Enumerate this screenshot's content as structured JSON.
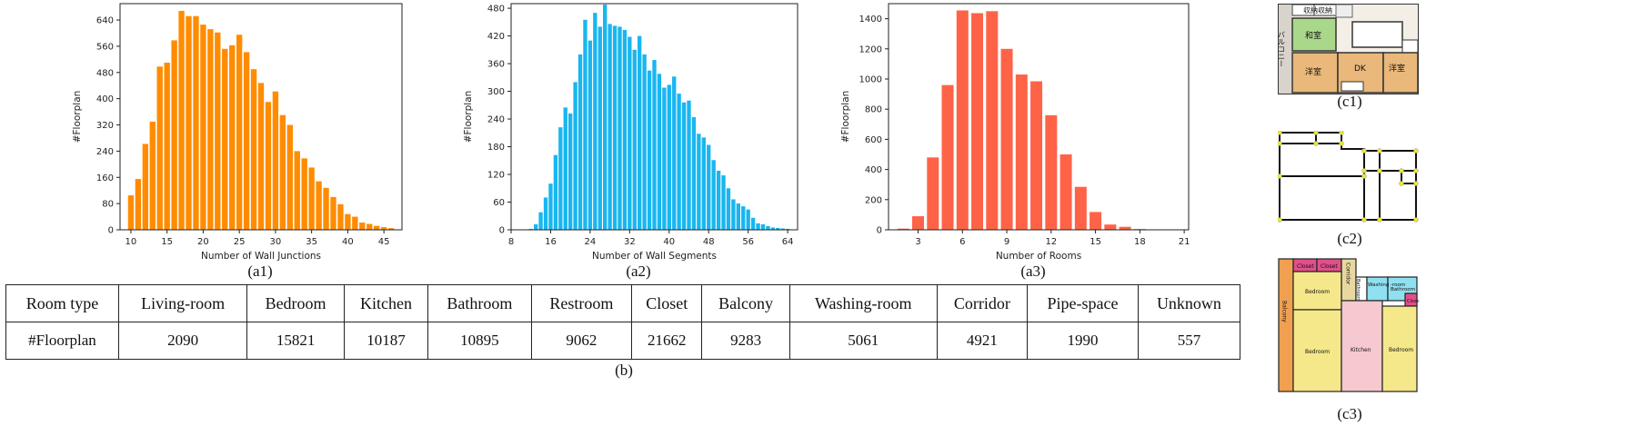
{
  "chart_data": [
    {
      "type": "bar",
      "xlabel": "Number of Wall Junctions",
      "ylabel": "#Floorplan",
      "color": "#ff8c00",
      "x": [
        10,
        11,
        12,
        13,
        14,
        15,
        16,
        17,
        18,
        19,
        20,
        21,
        22,
        23,
        24,
        25,
        26,
        27,
        28,
        29,
        30,
        31,
        32,
        33,
        34,
        35,
        36,
        37,
        38,
        39,
        40,
        41,
        42,
        43,
        44,
        45,
        46
      ],
      "values": [
        105,
        155,
        262,
        330,
        498,
        510,
        578,
        668,
        652,
        652,
        626,
        612,
        602,
        552,
        563,
        595,
        542,
        490,
        448,
        390,
        422,
        350,
        320,
        240,
        218,
        190,
        148,
        128,
        100,
        78,
        48,
        40,
        22,
        18,
        12,
        8,
        5
      ],
      "xlim": [
        8.5,
        47.5
      ],
      "ylim": [
        0,
        690
      ],
      "xticks": [
        10,
        15,
        20,
        25,
        30,
        35,
        40,
        45
      ],
      "yticks": [
        0,
        80,
        160,
        240,
        320,
        400,
        480,
        560,
        640
      ]
    },
    {
      "type": "bar",
      "xlabel": "Number of Wall Segments",
      "ylabel": "#Floorplan",
      "color": "#19b6f0",
      "x": [
        12,
        13,
        14,
        15,
        16,
        17,
        18,
        19,
        20,
        21,
        22,
        23,
        24,
        25,
        26,
        27,
        28,
        29,
        30,
        31,
        32,
        33,
        34,
        35,
        36,
        37,
        38,
        39,
        40,
        41,
        42,
        43,
        44,
        45,
        46,
        47,
        48,
        49,
        50,
        51,
        52,
        53,
        54,
        55,
        56,
        57,
        58,
        59,
        60,
        61,
        62,
        63,
        64,
        65
      ],
      "values": [
        2,
        12,
        38,
        70,
        100,
        162,
        222,
        265,
        252,
        320,
        380,
        455,
        410,
        470,
        440,
        488,
        446,
        442,
        440,
        433,
        418,
        390,
        420,
        380,
        345,
        368,
        338,
        308,
        314,
        332,
        295,
        276,
        280,
        244,
        208,
        200,
        184,
        151,
        128,
        118,
        90,
        66,
        57,
        51,
        44,
        26,
        14,
        12,
        8,
        5,
        4,
        3,
        2,
        1
      ],
      "xlim": [
        8,
        66
      ],
      "ylim": [
        0,
        490
      ],
      "xticks": [
        8,
        16,
        24,
        32,
        40,
        48,
        56,
        64
      ],
      "yticks": [
        0,
        60,
        120,
        180,
        240,
        300,
        360,
        420,
        480
      ]
    },
    {
      "type": "bar",
      "xlabel": "Number of Rooms",
      "ylabel": "#Floorplan",
      "color": "#ff6347",
      "x": [
        2,
        3,
        4,
        5,
        6,
        7,
        8,
        9,
        10,
        11,
        12,
        13,
        14,
        15,
        16,
        17,
        18,
        19,
        20
      ],
      "values": [
        8,
        90,
        480,
        960,
        1455,
        1437,
        1450,
        1200,
        1030,
        985,
        760,
        500,
        285,
        118,
        35,
        20,
        5,
        3,
        1
      ],
      "xlim": [
        1,
        21.3
      ],
      "ylim": [
        0,
        1500
      ],
      "xticks": [
        3,
        6,
        9,
        12,
        15,
        18,
        21
      ],
      "yticks": [
        0,
        200,
        400,
        600,
        800,
        1000,
        1200,
        1400
      ]
    }
  ],
  "captions": {
    "a1": "(a1)",
    "a2": "(a2)",
    "a3": "(a3)",
    "b": "(b)",
    "c1": "(c1)",
    "c2": "(c2)",
    "c3": "(c3)"
  },
  "table": {
    "headers": [
      "Room type",
      "Living-room",
      "Bedroom",
      "Kitchen",
      "Bathroom",
      "Restroom",
      "Closet",
      "Balcony",
      "Washing-room",
      "Corridor",
      "Pipe-space",
      "Unknown"
    ],
    "rows": [
      [
        "#Floorplan",
        "2090",
        "15821",
        "10187",
        "10895",
        "9062",
        "21662",
        "9283",
        "5061",
        "4921",
        "1990",
        "557"
      ]
    ]
  },
  "floorplan_labels": {
    "closet_jp": "収納",
    "washitsu": "和室",
    "yoshitsu": "洋室",
    "dk": "DK",
    "balcony_jp": "バルコニー",
    "closet": "Closet",
    "corridor": "Corridor",
    "washing_room": "Washing -room",
    "bathroom": "Bathroom",
    "bedroom": "Bedroom",
    "kitchen": "Kitchen",
    "balcony": "Balcony"
  }
}
